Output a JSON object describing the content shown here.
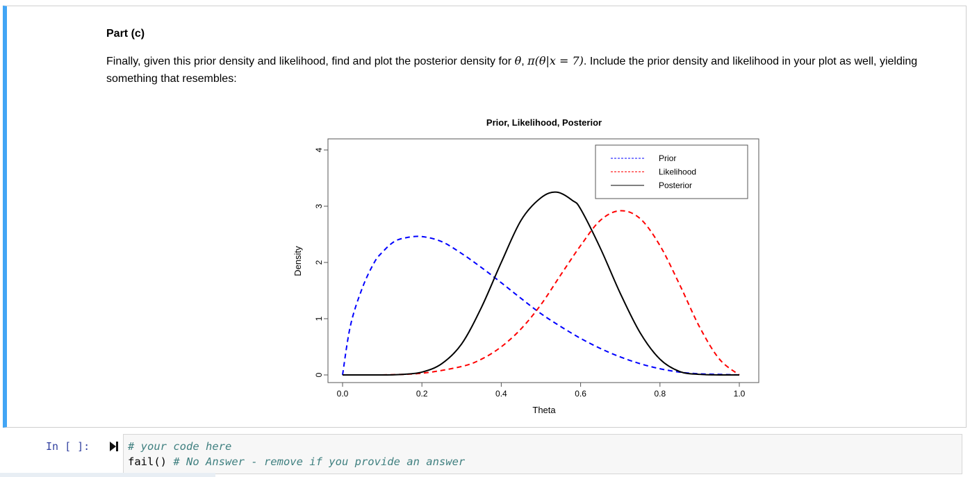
{
  "markdown_cell": {
    "heading": "Part (c)",
    "text_before_math": "Finally, given this prior density and likelihood, find and plot the posterior density for ",
    "math_theta": "θ",
    "math_sep": ", ",
    "math_posterior": "π(θ|x = 7)",
    "text_after_math": ". Include the prior density and likelihood in your plot as well, yielding something that resembles:"
  },
  "code_cell": {
    "prompt": "In [ ]:",
    "line1_comment": "# your code here",
    "line2_code": "fail()",
    "line2_comment": " # No Answer - remove if you provide an answer"
  },
  "colors": {
    "accent": "#42a5f5",
    "prior": "#0000ff",
    "likelihood": "#ff0000",
    "posterior": "#000000",
    "prompt": "#303f9f"
  },
  "chart_data": {
    "type": "line",
    "title": "Prior, Likelihood, Posterior",
    "xlabel": "Theta",
    "ylabel": "Density",
    "xlim": [
      0,
      1
    ],
    "ylim": [
      0,
      4
    ],
    "xticks": [
      "0.0",
      "0.2",
      "0.4",
      "0.6",
      "0.8",
      "1.0"
    ],
    "yticks": [
      "0",
      "1",
      "2",
      "3",
      "4"
    ],
    "legend_position": "top-right",
    "grid": false,
    "series": [
      {
        "name": "Prior",
        "style": "dashed",
        "color": "#0000ff",
        "x": [
          0,
          0.02,
          0.05,
          0.08,
          0.1,
          0.13,
          0.16,
          0.2,
          0.25,
          0.3,
          0.35,
          0.4,
          0.45,
          0.5,
          0.55,
          0.6,
          0.65,
          0.7,
          0.75,
          0.8,
          0.85,
          0.9,
          0.95,
          1.0
        ],
        "y": [
          0,
          0.88,
          1.55,
          2.0,
          2.18,
          2.37,
          2.44,
          2.46,
          2.37,
          2.16,
          1.91,
          1.64,
          1.36,
          1.09,
          0.86,
          0.65,
          0.47,
          0.32,
          0.2,
          0.11,
          0.05,
          0.02,
          0.01,
          0
        ]
      },
      {
        "name": "Likelihood",
        "style": "dashed",
        "color": "#ff0000",
        "x": [
          0.1,
          0.2,
          0.3,
          0.35,
          0.4,
          0.45,
          0.5,
          0.55,
          0.6,
          0.65,
          0.7,
          0.75,
          0.8,
          0.85,
          0.9,
          0.95,
          1.0
        ],
        "y": [
          0,
          0.03,
          0.15,
          0.28,
          0.5,
          0.82,
          1.25,
          1.78,
          2.3,
          2.75,
          2.92,
          2.78,
          2.3,
          1.6,
          0.85,
          0.28,
          0
        ]
      },
      {
        "name": "Posterior",
        "style": "solid",
        "color": "#000000",
        "x": [
          0,
          0.1,
          0.15,
          0.2,
          0.25,
          0.3,
          0.35,
          0.4,
          0.45,
          0.5,
          0.54,
          0.58,
          0.6,
          0.65,
          0.7,
          0.75,
          0.8,
          0.85,
          0.9,
          0.95,
          1.0
        ],
        "y": [
          0,
          0,
          0.01,
          0.05,
          0.2,
          0.55,
          1.2,
          2.0,
          2.75,
          3.15,
          3.25,
          3.1,
          2.95,
          2.25,
          1.45,
          0.75,
          0.28,
          0.06,
          0.01,
          0,
          0
        ]
      }
    ]
  }
}
